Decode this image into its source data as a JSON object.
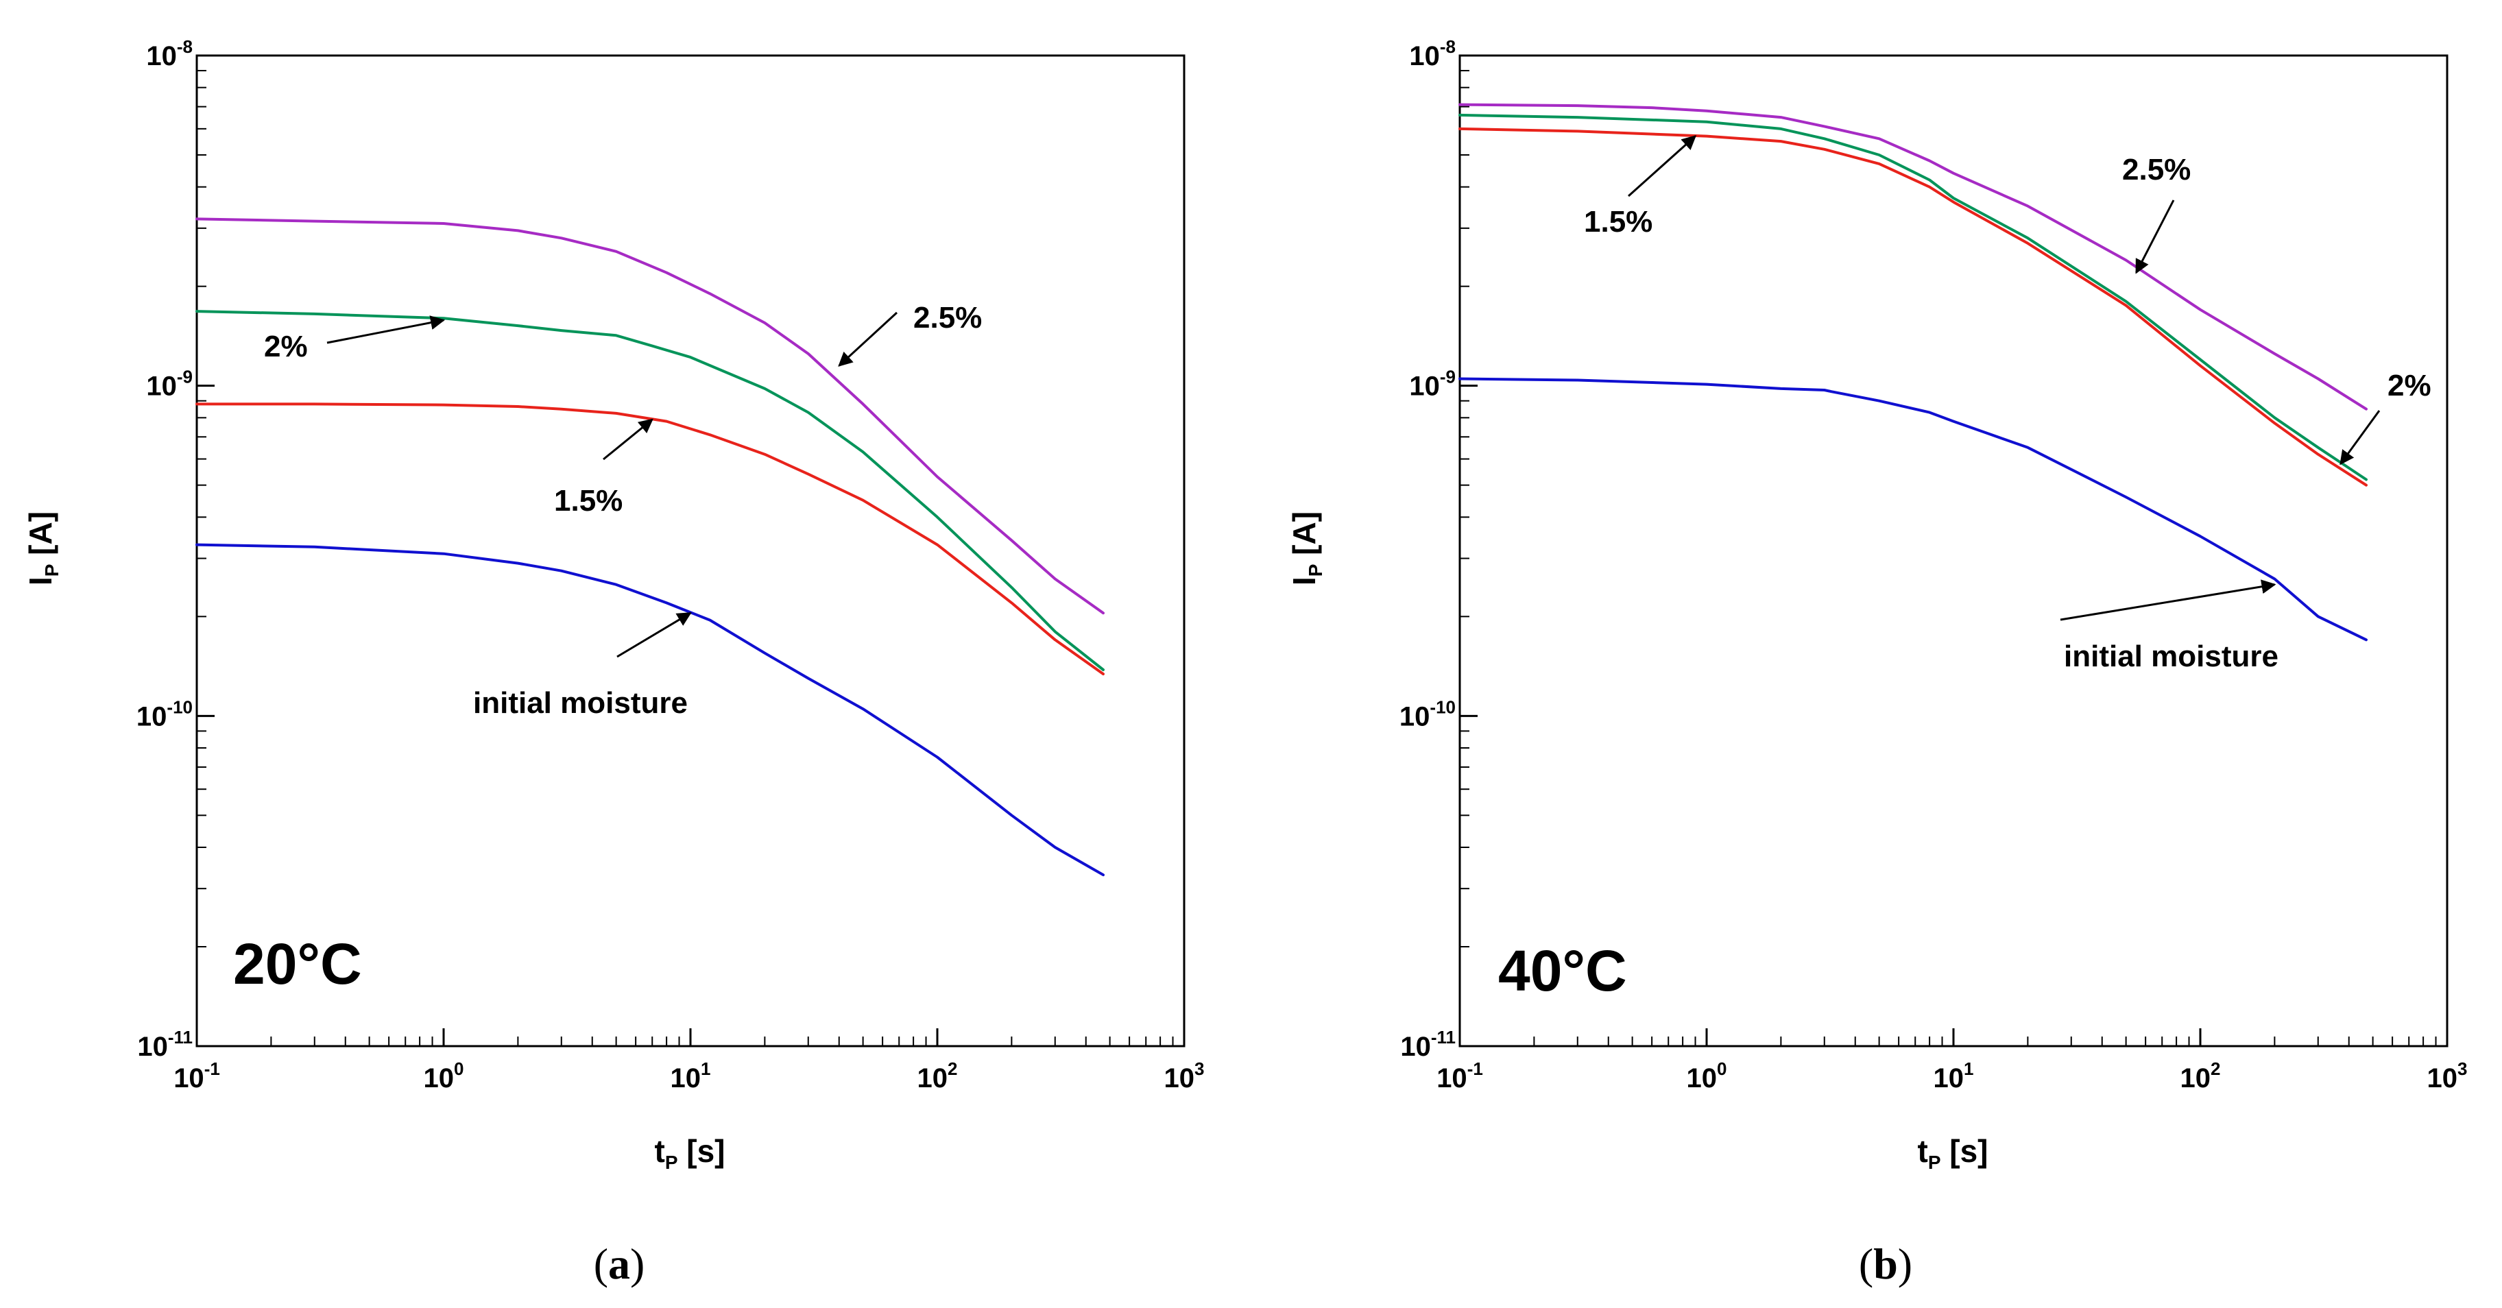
{
  "colors": {
    "initial moisture": "#1010d0",
    "1.5%": "#e8231b",
    "2%": "#06945a",
    "2.5%": "#a62bc4"
  },
  "chart_data": [
    {
      "type": "line",
      "panel": "a",
      "panel_label": {
        "open": "(",
        "letter": "a",
        "close": ")"
      },
      "temperature_label": "20°C",
      "xlabel": {
        "main": "t",
        "sub": "P",
        "unit": " [s]"
      },
      "ylabel": {
        "main": "I",
        "sub": "P",
        "unit": " [A]"
      },
      "x_scale": "log",
      "y_scale": "log",
      "xlim": [
        0.1,
        1000
      ],
      "ylim": [
        1e-11,
        1e-08
      ],
      "grid": false,
      "x_ticks": [
        {
          "base": "10",
          "exp": "-1",
          "value": 0.1
        },
        {
          "base": "10",
          "exp": "0",
          "value": 1
        },
        {
          "base": "10",
          "exp": "1",
          "value": 10
        },
        {
          "base": "10",
          "exp": "2",
          "value": 100
        },
        {
          "base": "10",
          "exp": "3",
          "value": 1000
        }
      ],
      "y_ticks": [
        {
          "base": "10",
          "exp": "-11",
          "value": 1e-11
        },
        {
          "base": "10",
          "exp": "-10",
          "value": 1e-10
        },
        {
          "base": "10",
          "exp": "-9",
          "value": 1e-09
        },
        {
          "base": "10",
          "exp": "-8",
          "value": 1e-08
        }
      ],
      "series": [
        {
          "name": "2.5%",
          "x": [
            0.1,
            0.3,
            1,
            2,
            3,
            5,
            8,
            12,
            20,
            30,
            50,
            100,
            200,
            300,
            470
          ],
          "y": [
            3.2e-09,
            3.15e-09,
            3.1e-09,
            2.95e-09,
            2.8e-09,
            2.55e-09,
            2.2e-09,
            1.9e-09,
            1.55e-09,
            1.25e-09,
            8.8e-10,
            5.3e-10,
            3.4e-10,
            2.6e-10,
            2.05e-10
          ]
        },
        {
          "name": "2%",
          "x": [
            0.1,
            0.3,
            1,
            2,
            3,
            5,
            7,
            10,
            20,
            30,
            50,
            100,
            200,
            300,
            470
          ],
          "y": [
            1.68e-09,
            1.65e-09,
            1.6e-09,
            1.52e-09,
            1.47e-09,
            1.42e-09,
            1.32e-09,
            1.22e-09,
            9.8e-10,
            8.3e-10,
            6.3e-10,
            4e-10,
            2.45e-10,
            1.8e-10,
            1.38e-10
          ]
        },
        {
          "name": "1.5%",
          "x": [
            0.1,
            0.3,
            1,
            2,
            3,
            5,
            8,
            12,
            20,
            30,
            50,
            100,
            200,
            300,
            470
          ],
          "y": [
            8.8e-10,
            8.8e-10,
            8.75e-10,
            8.65e-10,
            8.5e-10,
            8.25e-10,
            7.8e-10,
            7.1e-10,
            6.2e-10,
            5.4e-10,
            4.5e-10,
            3.3e-10,
            2.2e-10,
            1.7e-10,
            1.34e-10
          ]
        },
        {
          "name": "initial moisture",
          "x": [
            0.1,
            0.3,
            1,
            2,
            3,
            5,
            8,
            12,
            20,
            30,
            50,
            100,
            200,
            300,
            470
          ],
          "y": [
            3.3e-10,
            3.25e-10,
            3.1e-10,
            2.9e-10,
            2.75e-10,
            2.5e-10,
            2.2e-10,
            1.95e-10,
            1.55e-10,
            1.3e-10,
            1.05e-10,
            7.5e-11,
            5e-11,
            4e-11,
            3.3e-11
          ]
        }
      ],
      "annotations": [
        {
          "text": "2.5%",
          "series": "2.5%",
          "point": [
            40,
            1.15e-09
          ]
        },
        {
          "text": "2%",
          "series": "2%",
          "point": [
            1.0,
            1.58e-09
          ]
        },
        {
          "text": "1.5%",
          "series": "1.5%",
          "point": [
            7,
            7.9e-10
          ]
        },
        {
          "text": "initial moisture",
          "series": "initial moisture",
          "point": [
            10,
            2.05e-10
          ]
        }
      ]
    },
    {
      "type": "line",
      "panel": "b",
      "panel_label": {
        "open": "(",
        "letter": "b",
        "close": ")"
      },
      "temperature_label": "40°C",
      "xlabel": {
        "main": "t",
        "sub": "P",
        "unit": " [s]"
      },
      "ylabel": {
        "main": "I",
        "sub": "P",
        "unit": " [A]"
      },
      "x_scale": "log",
      "y_scale": "log",
      "xlim": [
        0.1,
        1000
      ],
      "ylim": [
        1e-11,
        1e-08
      ],
      "grid": false,
      "x_ticks": [
        {
          "base": "10",
          "exp": "-1",
          "value": 0.1
        },
        {
          "base": "10",
          "exp": "0",
          "value": 1
        },
        {
          "base": "10",
          "exp": "1",
          "value": 10
        },
        {
          "base": "10",
          "exp": "2",
          "value": 100
        },
        {
          "base": "10",
          "exp": "3",
          "value": 1000
        }
      ],
      "y_ticks": [
        {
          "base": "10",
          "exp": "-11",
          "value": 1e-11
        },
        {
          "base": "10",
          "exp": "-10",
          "value": 1e-10
        },
        {
          "base": "10",
          "exp": "-9",
          "value": 1e-09
        },
        {
          "base": "10",
          "exp": "-8",
          "value": 1e-08
        }
      ],
      "series": [
        {
          "name": "2.5%",
          "x": [
            0.1,
            0.3,
            0.6,
            1,
            2,
            3,
            5,
            8,
            10,
            20,
            50,
            100,
            200,
            300,
            470
          ],
          "y": [
            7.1e-09,
            7.05e-09,
            6.95e-09,
            6.8e-09,
            6.5e-09,
            6.1e-09,
            5.6e-09,
            4.8e-09,
            4.4e-09,
            3.5e-09,
            2.4e-09,
            1.7e-09,
            1.25e-09,
            1.05e-09,
            8.5e-10
          ]
        },
        {
          "name": "2%",
          "x": [
            0.1,
            0.3,
            1,
            2,
            3,
            5,
            8,
            10,
            20,
            50,
            100,
            200,
            300,
            470
          ],
          "y": [
            6.6e-09,
            6.5e-09,
            6.3e-09,
            6e-09,
            5.6e-09,
            5e-09,
            4.2e-09,
            3.7e-09,
            2.8e-09,
            1.8e-09,
            1.2e-09,
            8e-10,
            6.5e-10,
            5.2e-10
          ]
        },
        {
          "name": "1.5%",
          "x": [
            0.1,
            0.3,
            1,
            2,
            3,
            5,
            8,
            10,
            20,
            50,
            100,
            200,
            300,
            470
          ],
          "y": [
            6e-09,
            5.9e-09,
            5.7e-09,
            5.5e-09,
            5.2e-09,
            4.7e-09,
            4e-09,
            3.6e-09,
            2.7e-09,
            1.75e-09,
            1.15e-09,
            7.7e-10,
            6.2e-10,
            5e-10
          ]
        },
        {
          "name": "initial moisture",
          "x": [
            0.1,
            0.3,
            1,
            2,
            3,
            3.2,
            5,
            8,
            10,
            20,
            50,
            100,
            200,
            300,
            470
          ],
          "y": [
            1.05e-09,
            1.04e-09,
            1.01e-09,
            9.8e-10,
            9.7e-10,
            9.6e-10,
            9e-10,
            8.3e-10,
            7.8e-10,
            6.5e-10,
            4.6e-10,
            3.5e-10,
            2.6e-10,
            2e-10,
            1.7e-10
          ]
        }
      ],
      "annotations": [
        {
          "text": "2.5%",
          "series": "2.5%",
          "point": [
            55,
            2.2e-09
          ]
        },
        {
          "text": "1.5%",
          "series": "1.5%",
          "point": [
            0.9,
            5.7e-09
          ]
        },
        {
          "text": "2%",
          "series": "2%",
          "point": [
            370,
            5.8e-10
          ]
        },
        {
          "text": "initial moisture",
          "series": "initial moisture",
          "point": [
            200,
            2.5e-10
          ]
        }
      ]
    }
  ]
}
